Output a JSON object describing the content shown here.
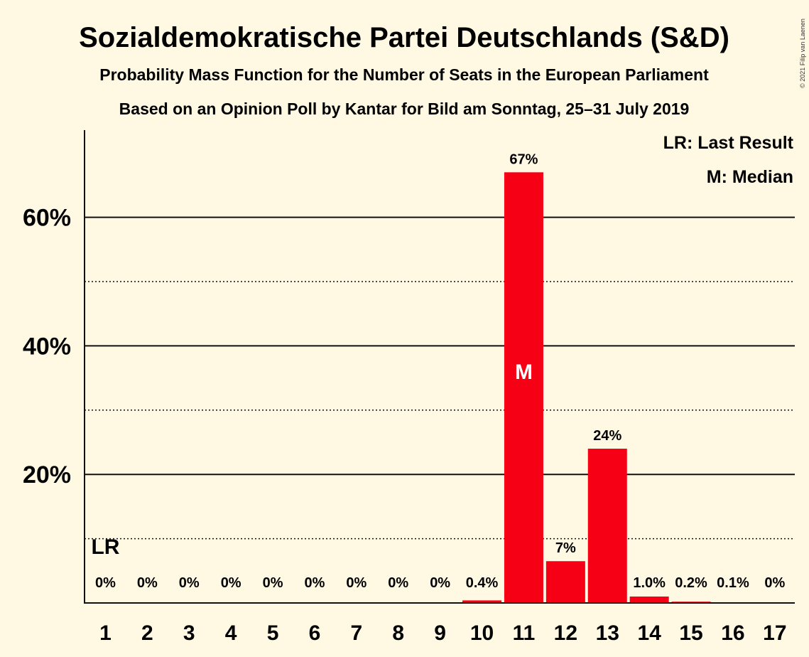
{
  "chart_data": {
    "type": "bar",
    "title": "Sozialdemokratische Partei Deutschlands (S&D)",
    "subtitle": "Probability Mass Function for the Number of Seats in the European Parliament",
    "subtitle2": "Based on an Opinion Poll by Kantar for Bild am Sonntag, 25–31 July 2019",
    "copyright": "© 2021 Filip van Laenen",
    "categories": [
      "1",
      "2",
      "3",
      "4",
      "5",
      "6",
      "7",
      "8",
      "9",
      "10",
      "11",
      "12",
      "13",
      "14",
      "15",
      "16",
      "17"
    ],
    "values": [
      0,
      0,
      0,
      0,
      0,
      0,
      0,
      0,
      0,
      0.4,
      67,
      6.5,
      24,
      1.0,
      0.2,
      0.1,
      0
    ],
    "value_labels": [
      "0%",
      "0%",
      "0%",
      "0%",
      "0%",
      "0%",
      "0%",
      "0%",
      "0%",
      "0.4%",
      "67%",
      "7%",
      "24%",
      "1.0%",
      "0.2%",
      "0.1%",
      "0%"
    ],
    "ylim": [
      0,
      73
    ],
    "yticks": [
      {
        "value": 20,
        "label": "20%"
      },
      {
        "value": 40,
        "label": "40%"
      },
      {
        "value": 60,
        "label": "60%"
      }
    ],
    "minor_gridlines": [
      10,
      30,
      50
    ],
    "bar_color": "#F50015",
    "background_color": "#FFF8E3",
    "median": {
      "category": "11",
      "label": "M"
    },
    "last_result": {
      "category": "1",
      "label": "LR"
    },
    "legend": {
      "position": "top-right",
      "entries": [
        "LR: Last Result",
        "M: Median"
      ]
    }
  }
}
